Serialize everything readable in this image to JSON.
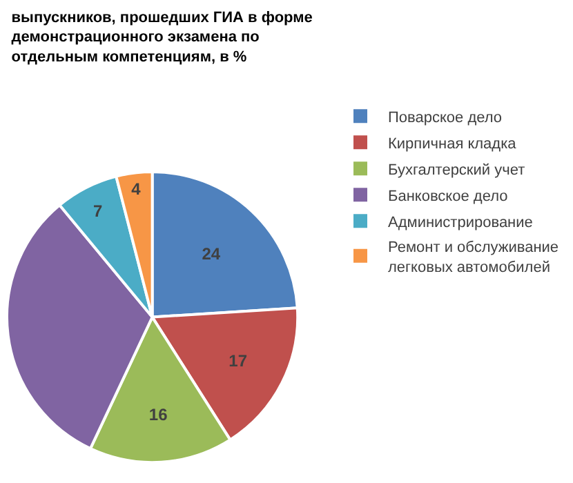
{
  "chart_data": {
    "type": "pie",
    "title": "выпускников, прошедших ГИА в форме демонстрационного экзамена по отдельным компетенциям, в %",
    "categories": [
      "Поварское дело",
      "Кирпичная кладка",
      "Бухгалтерский учет",
      "Банковское дело",
      "Администрирование",
      "Ремонт и обслуживание легковых автомобилей"
    ],
    "values": [
      24,
      17,
      16,
      32,
      7,
      4
    ],
    "colors": [
      "#4f81bd",
      "#c0504d",
      "#9bbb59",
      "#8064a2",
      "#4bacc6",
      "#f79646"
    ],
    "value_labels": [
      "24",
      "17",
      "16",
      null,
      "7",
      "4"
    ],
    "legend": "right"
  }
}
